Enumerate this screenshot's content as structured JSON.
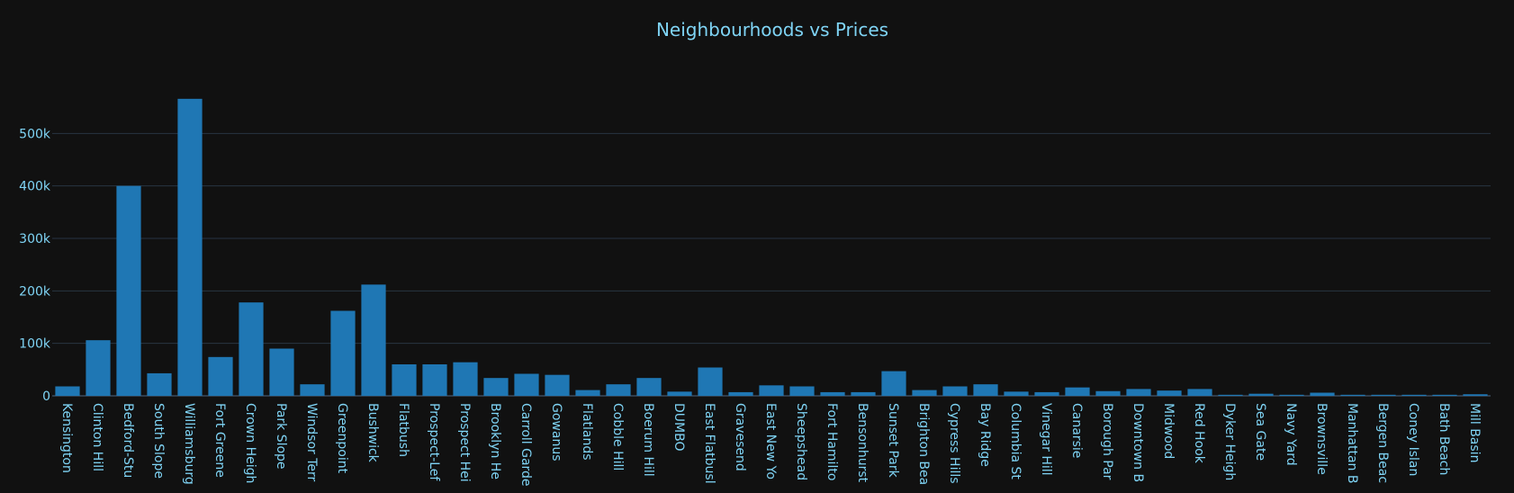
{
  "chart_data": {
    "type": "bar",
    "title": "Neighbourhoods vs Prices",
    "xlabel": "",
    "ylabel": "",
    "ylim": [
      0,
      600000
    ],
    "yticks": [
      0,
      100000,
      200000,
      300000,
      400000,
      500000
    ],
    "ytick_labels": [
      "0",
      "100k",
      "200k",
      "300k",
      "400k",
      "500k"
    ],
    "bar_color": "#1f77b4",
    "background": "#111111",
    "text_color": "#7fd4f5",
    "grid": true,
    "categories": [
      "Kensington",
      "Clinton Hill",
      "Bedford-Stu",
      "South Slope",
      "Williamsburg",
      "Fort Greene",
      "Crown Heigh",
      "Park Slope",
      "Windsor Terr",
      "Greenpoint",
      "Bushwick",
      "Flatbush",
      "Prospect-Lef",
      "Prospect Hei",
      "Brooklyn He",
      "Carroll Garde",
      "Gowanus",
      "Flatlands",
      "Cobble Hill",
      "Boerum Hill",
      "DUMBO",
      "East Flatbusl",
      "Gravesend",
      "East New Yo",
      "Sheepshead",
      "Fort Hamilto",
      "Bensonhurst",
      "Sunset Park",
      "Brighton Bea",
      "Cypress Hills",
      "Bay Ridge",
      "Columbia St",
      "Vinegar Hill",
      "Canarsie",
      "Borough Par",
      "Downtown B",
      "Midwood",
      "Red Hook",
      "Dyker Heigh",
      "Sea Gate",
      "Navy Yard",
      "Brownsville",
      "Manhattan B",
      "Bergen Beac",
      "Coney Islan",
      "Bath Beach",
      "Mill Basin"
    ],
    "values": [
      18000,
      106000,
      400000,
      43000,
      566000,
      74000,
      178000,
      90000,
      22000,
      162000,
      212000,
      60000,
      60000,
      64000,
      34000,
      42000,
      40000,
      11000,
      22000,
      34000,
      8000,
      54000,
      7000,
      20000,
      18000,
      7000,
      7000,
      47000,
      11000,
      18000,
      22000,
      8000,
      7000,
      16000,
      9000,
      13000,
      10000,
      13000,
      2000,
      4000,
      2000,
      6000,
      2000,
      2000,
      2000,
      2000,
      3000
    ]
  }
}
